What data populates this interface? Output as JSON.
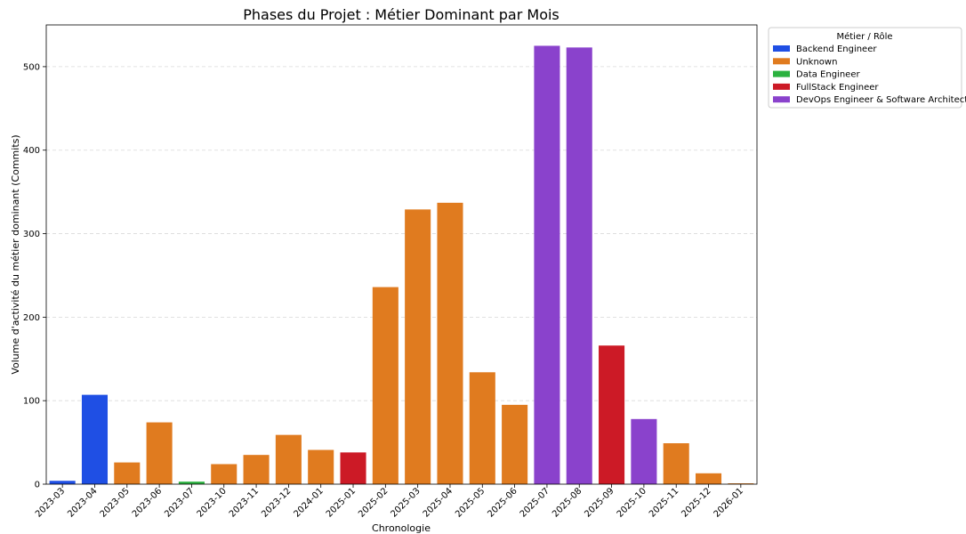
{
  "chart_data": {
    "type": "bar",
    "title": "Phases du Projet : Métier Dominant par Mois",
    "xlabel": "Chronologie",
    "ylabel": "Volume d'activité du métier dominant (Commits)",
    "ylim": [
      0,
      550
    ],
    "yticks": [
      0,
      100,
      200,
      300,
      400,
      500
    ],
    "grid": "horizontal dashed",
    "legend": {
      "title": "Métier / Rôle",
      "placement": "outside top-right",
      "entries": [
        {
          "name": "Backend Engineer",
          "color": "#1f4fe4"
        },
        {
          "name": "Unknown",
          "color": "#e07b1f"
        },
        {
          "name": "Data Engineer",
          "color": "#2bb13f"
        },
        {
          "name": "FullStack Engineer",
          "color": "#cc1a26"
        },
        {
          "name": "DevOps Engineer & Software Architect",
          "color": "#8a42cc"
        }
      ]
    },
    "categories": [
      "2023-03",
      "2023-04",
      "2023-05",
      "2023-06",
      "2023-07",
      "2023-10",
      "2023-11",
      "2023-12",
      "2024-01",
      "2025-01",
      "2025-02",
      "2025-03",
      "2025-04",
      "2025-05",
      "2025-06",
      "2025-07",
      "2025-08",
      "2025-09",
      "2025-10",
      "2025-11",
      "2025-12",
      "2026-01"
    ],
    "values": [
      4,
      107,
      26,
      74,
      3,
      24,
      35,
      59,
      41,
      38,
      236,
      329,
      337,
      134,
      95,
      525,
      523,
      166,
      78,
      49,
      13,
      1
    ],
    "roles": [
      "Backend Engineer",
      "Backend Engineer",
      "Unknown",
      "Unknown",
      "Data Engineer",
      "Unknown",
      "Unknown",
      "Unknown",
      "Unknown",
      "FullStack Engineer",
      "Unknown",
      "Unknown",
      "Unknown",
      "Unknown",
      "Unknown",
      "DevOps Engineer & Software Architect",
      "DevOps Engineer & Software Architect",
      "FullStack Engineer",
      "DevOps Engineer & Software Architect",
      "Unknown",
      "Unknown",
      "Unknown"
    ]
  }
}
